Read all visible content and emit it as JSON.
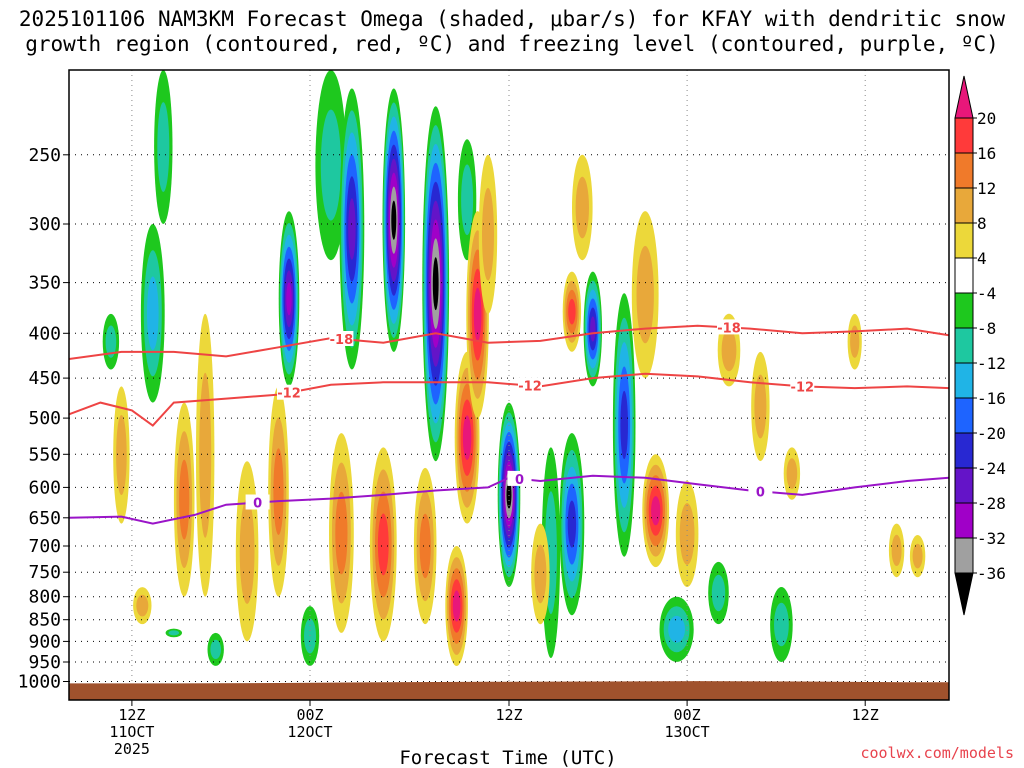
{
  "chart_data": {
    "type": "heatmap",
    "title_line1": "2025101106 NAM3KM Forecast Omega (shaded, μbar/s) for KFAY with dendritic snow",
    "title_line2": "growth region (contoured, red, ºC) and freezing level (contoured, purple, ºC)",
    "xlabel": "Forecast Time (UTC)",
    "ylabel": "",
    "credit": "coolwx.com/models",
    "y_axis": {
      "scale": "log-pressure",
      "range": [
        1050,
        200
      ],
      "ticks": [
        250,
        300,
        350,
        400,
        450,
        500,
        550,
        600,
        650,
        700,
        750,
        800,
        850,
        900,
        950,
        1000
      ]
    },
    "x_axis": {
      "range_hours": [
        0,
        84
      ],
      "ticks": [
        {
          "hour": 6,
          "line1": "12Z",
          "line2": "11OCT",
          "line3": "2025"
        },
        {
          "hour": 23,
          "line1": "00Z",
          "line2": "12OCT",
          "line3": ""
        },
        {
          "hour": 42,
          "line1": "12Z",
          "line2": "",
          "line3": ""
        },
        {
          "hour": 59,
          "line1": "00Z",
          "line2": "13OCT",
          "line3": ""
        },
        {
          "hour": 76,
          "line1": "12Z",
          "line2": "",
          "line3": ""
        }
      ]
    },
    "colorbar": {
      "labels": [
        "20",
        "16",
        "12",
        "8",
        "4",
        "-4",
        "-8",
        "-12",
        "-16",
        "-20",
        "-24",
        "-28",
        "-32",
        "-36"
      ],
      "colors": [
        "#e8177a",
        "#ff3a3a",
        "#f07a2a",
        "#e8a83a",
        "#ecd83a",
        "#ffffff",
        "#1ec81e",
        "#1ec8a0",
        "#20b4e6",
        "#1e64ff",
        "#2828d2",
        "#6414c8",
        "#a000c8",
        "#a0a0a0",
        "#000000"
      ]
    },
    "contours": [
      {
        "name": "dendritic-top",
        "color": "#ee4444",
        "label": "-18",
        "points": [
          [
            0,
            428
          ],
          [
            5,
            420
          ],
          [
            10,
            420
          ],
          [
            15,
            425
          ],
          [
            20,
            415
          ],
          [
            25,
            405
          ],
          [
            30,
            410
          ],
          [
            35,
            400
          ],
          [
            40,
            410
          ],
          [
            45,
            408
          ],
          [
            50,
            400
          ],
          [
            55,
            395
          ],
          [
            60,
            392
          ],
          [
            65,
            395
          ],
          [
            70,
            400
          ],
          [
            75,
            398
          ],
          [
            80,
            395
          ],
          [
            84,
            402
          ]
        ],
        "label_hours": [
          26,
          63
        ]
      },
      {
        "name": "dendritic-bottom",
        "color": "#ee4444",
        "label": "-12",
        "points": [
          [
            0,
            495
          ],
          [
            3,
            480
          ],
          [
            6,
            490
          ],
          [
            8,
            510
          ],
          [
            10,
            480
          ],
          [
            15,
            475
          ],
          [
            20,
            470
          ],
          [
            25,
            458
          ],
          [
            30,
            455
          ],
          [
            35,
            455
          ],
          [
            40,
            455
          ],
          [
            45,
            460
          ],
          [
            50,
            450
          ],
          [
            55,
            445
          ],
          [
            60,
            448
          ],
          [
            65,
            455
          ],
          [
            70,
            460
          ],
          [
            75,
            462
          ],
          [
            80,
            460
          ],
          [
            84,
            462
          ]
        ],
        "label_hours": [
          21,
          44,
          70
        ]
      },
      {
        "name": "freezing-level",
        "color": "#9a14c8",
        "label": "0",
        "points": [
          [
            0,
            650
          ],
          [
            5,
            648
          ],
          [
            8,
            660
          ],
          [
            12,
            645
          ],
          [
            15,
            628
          ],
          [
            20,
            622
          ],
          [
            25,
            618
          ],
          [
            30,
            612
          ],
          [
            35,
            605
          ],
          [
            40,
            600
          ],
          [
            42,
            585
          ],
          [
            45,
            590
          ],
          [
            50,
            582
          ],
          [
            55,
            585
          ],
          [
            60,
            595
          ],
          [
            65,
            605
          ],
          [
            70,
            612
          ],
          [
            75,
            600
          ],
          [
            80,
            590
          ],
          [
            84,
            585
          ]
        ],
        "label_hours": [
          18,
          43,
          66
        ]
      }
    ],
    "omega_cells": [
      {
        "hour": 8,
        "top": 300,
        "bottom": 480,
        "width": 1.5,
        "peak": -10
      },
      {
        "hour": 9,
        "top": 200,
        "bottom": 300,
        "width": 1.0,
        "peak": -6
      },
      {
        "hour": 21,
        "top": 290,
        "bottom": 460,
        "width": 1.2,
        "peak": -26
      },
      {
        "hour": 25,
        "top": 200,
        "bottom": 330,
        "width": 2.2,
        "peak": -6
      },
      {
        "hour": 27,
        "top": 210,
        "bottom": 440,
        "width": 1.6,
        "peak": -22
      },
      {
        "hour": 31,
        "top": 210,
        "bottom": 420,
        "width": 1.4,
        "peak": -36
      },
      {
        "hour": 35,
        "top": 220,
        "bottom": 560,
        "width": 1.8,
        "peak": -36
      },
      {
        "hour": 38,
        "top": 240,
        "bottom": 330,
        "width": 1.0,
        "peak": -6
      },
      {
        "hour": 42,
        "top": 480,
        "bottom": 780,
        "width": 1.4,
        "peak": -36
      },
      {
        "hour": 48,
        "top": 520,
        "bottom": 840,
        "width": 1.6,
        "peak": -20
      },
      {
        "hour": 50,
        "top": 340,
        "bottom": 460,
        "width": 1.0,
        "peak": -24
      },
      {
        "hour": 53,
        "top": 360,
        "bottom": 720,
        "width": 1.4,
        "peak": -20
      },
      {
        "hour": 58,
        "top": 800,
        "bottom": 950,
        "width": 2.5,
        "peak": -12
      },
      {
        "hour": 62,
        "top": 730,
        "bottom": 860,
        "width": 1.2,
        "peak": -8
      },
      {
        "hour": 68,
        "top": 780,
        "bottom": 950,
        "width": 1.4,
        "peak": -8
      },
      {
        "hour": 14,
        "top": 880,
        "bottom": 960,
        "width": 0.8,
        "peak": -6
      },
      {
        "hour": 23,
        "top": 820,
        "bottom": 960,
        "width": 1.0,
        "peak": -8
      },
      {
        "hour": 46,
        "top": 540,
        "bottom": 940,
        "width": 1.0,
        "peak": -8
      },
      {
        "hour": 4,
        "top": 380,
        "bottom": 440,
        "width": 0.8,
        "peak": -6
      },
      {
        "hour": 10,
        "top": 870,
        "bottom": 890,
        "width": 0.8,
        "peak": -6
      },
      {
        "hour": 5,
        "top": 460,
        "bottom": 660,
        "width": 0.8,
        "peak": 6
      },
      {
        "hour": 11,
        "top": 480,
        "bottom": 800,
        "width": 1.2,
        "peak": 10
      },
      {
        "hour": 13,
        "top": 380,
        "bottom": 800,
        "width": 1.0,
        "peak": 6
      },
      {
        "hour": 17,
        "top": 560,
        "bottom": 900,
        "width": 1.4,
        "peak": 8
      },
      {
        "hour": 20,
        "top": 460,
        "bottom": 800,
        "width": 1.2,
        "peak": 10
      },
      {
        "hour": 26,
        "top": 520,
        "bottom": 880,
        "width": 1.6,
        "peak": 12
      },
      {
        "hour": 30,
        "top": 540,
        "bottom": 900,
        "width": 1.8,
        "peak": 14
      },
      {
        "hour": 34,
        "top": 570,
        "bottom": 860,
        "width": 1.4,
        "peak": 10
      },
      {
        "hour": 38,
        "top": 420,
        "bottom": 660,
        "width": 1.6,
        "peak": 22
      },
      {
        "hour": 39,
        "top": 290,
        "bottom": 500,
        "width": 1.4,
        "peak": 22
      },
      {
        "hour": 37,
        "top": 700,
        "bottom": 960,
        "width": 1.4,
        "peak": 22
      },
      {
        "hour": 40,
        "top": 250,
        "bottom": 380,
        "width": 1.0,
        "peak": 6
      },
      {
        "hour": 45,
        "top": 660,
        "bottom": 860,
        "width": 1.0,
        "peak": 8
      },
      {
        "hour": 48,
        "top": 340,
        "bottom": 420,
        "width": 1.0,
        "peak": 14
      },
      {
        "hour": 49,
        "top": 250,
        "bottom": 330,
        "width": 1.2,
        "peak": 6
      },
      {
        "hour": 55,
        "top": 290,
        "bottom": 450,
        "width": 1.8,
        "peak": 6
      },
      {
        "hour": 56,
        "top": 550,
        "bottom": 740,
        "width": 1.8,
        "peak": 22
      },
      {
        "hour": 59,
        "top": 590,
        "bottom": 780,
        "width": 1.4,
        "peak": 8
      },
      {
        "hour": 63,
        "top": 380,
        "bottom": 460,
        "width": 1.4,
        "peak": 6
      },
      {
        "hour": 66,
        "top": 420,
        "bottom": 560,
        "width": 1.0,
        "peak": 6
      },
      {
        "hour": 69,
        "top": 540,
        "bottom": 620,
        "width": 0.8,
        "peak": 6
      },
      {
        "hour": 75,
        "top": 380,
        "bottom": 440,
        "width": 0.6,
        "peak": 6
      },
      {
        "hour": 81,
        "top": 680,
        "bottom": 760,
        "width": 0.7,
        "peak": 6
      },
      {
        "hour": 79,
        "top": 660,
        "bottom": 760,
        "width": 0.7,
        "peak": 6
      },
      {
        "hour": 7,
        "top": 780,
        "bottom": 860,
        "width": 1.0,
        "peak": 6
      }
    ],
    "terrain_color": "#a0522d"
  }
}
